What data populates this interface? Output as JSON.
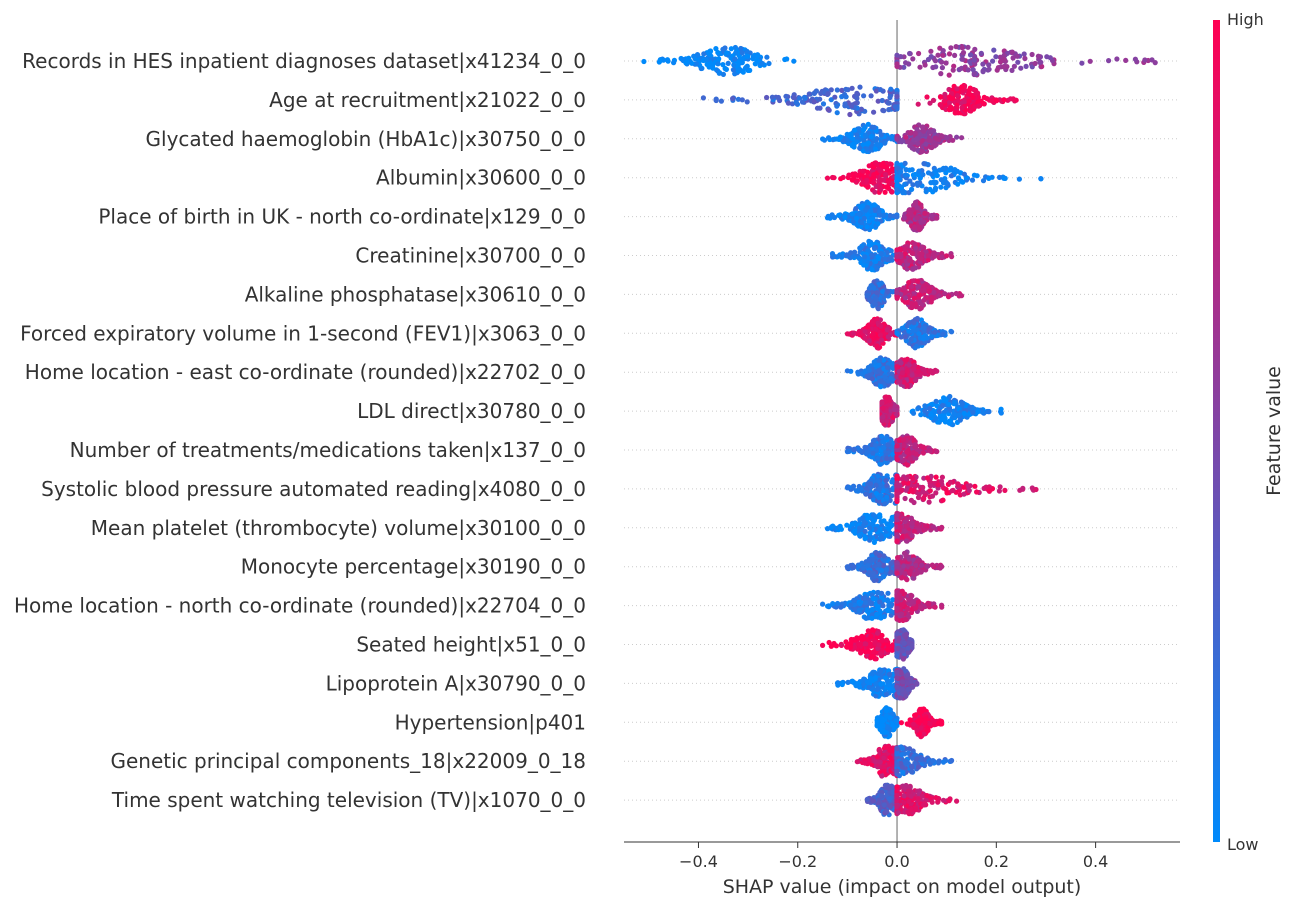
{
  "chart_data": {
    "type": "scatter",
    "subtype": "shap-beeswarm-summary",
    "title": "",
    "xlabel": "SHAP value (impact on model output)",
    "xlim": [
      -0.55,
      0.57
    ],
    "xticks": [
      -0.4,
      -0.2,
      0.0,
      0.2,
      0.4
    ],
    "xtick_labels": [
      "−0.4",
      "−0.2",
      "0.0",
      "0.2",
      "0.4"
    ],
    "colorbar": {
      "title": "Feature value",
      "high_label": "High",
      "low_label": "Low",
      "low_color": "#008afb",
      "high_color": "#ff0052"
    },
    "features": [
      {
        "name": "Records in HES inpatient diagnoses dataset|x41234_0_0",
        "min": -0.51,
        "max": 0.52,
        "neg_peak": -0.34,
        "pos_peak": 0.14,
        "neg_color": 0.0,
        "pos_color": 0.55
      },
      {
        "name": "Age at recruitment|x21022_0_0",
        "min": -0.39,
        "max": 0.24,
        "neg_peak": -0.08,
        "pos_peak": 0.13,
        "neg_color": 0.25,
        "pos_color": 0.95
      },
      {
        "name": "Glycated haemoglobin (HbA1c)|x30750_0_0",
        "min": -0.15,
        "max": 0.13,
        "neg_peak": -0.06,
        "pos_peak": 0.05,
        "neg_color": 0.05,
        "pos_color": 0.6
      },
      {
        "name": "Albumin|x30600_0_0",
        "min": -0.14,
        "max": 0.29,
        "neg_peak": -0.03,
        "pos_peak": 0.05,
        "neg_color": 0.95,
        "pos_color": 0.05
      },
      {
        "name": "Place of birth in UK - north co-ordinate|x129_0_0",
        "min": -0.14,
        "max": 0.08,
        "neg_peak": -0.06,
        "pos_peak": 0.04,
        "neg_color": 0.05,
        "pos_color": 0.7
      },
      {
        "name": "Creatinine|x30700_0_0",
        "min": -0.13,
        "max": 0.11,
        "neg_peak": -0.05,
        "pos_peak": 0.03,
        "neg_color": 0.1,
        "pos_color": 0.75
      },
      {
        "name": "Alkaline phosphatase|x30610_0_0",
        "min": -0.06,
        "max": 0.13,
        "neg_peak": -0.04,
        "pos_peak": 0.04,
        "neg_color": 0.2,
        "pos_color": 0.75
      },
      {
        "name": "Forced expiratory volume in 1-second (FEV1)|x3063_0_0",
        "min": -0.1,
        "max": 0.11,
        "neg_peak": -0.04,
        "pos_peak": 0.04,
        "neg_color": 0.9,
        "pos_color": 0.15
      },
      {
        "name": "Home location - east co-ordinate (rounded)|x22702_0_0",
        "min": -0.1,
        "max": 0.08,
        "neg_peak": -0.03,
        "pos_peak": 0.02,
        "neg_color": 0.15,
        "pos_color": 0.8
      },
      {
        "name": "LDL direct|x30780_0_0",
        "min": -0.03,
        "max": 0.21,
        "neg_peak": -0.02,
        "pos_peak": 0.1,
        "neg_color": 0.8,
        "pos_color": 0.05
      },
      {
        "name": "Number of treatments/medications taken|x137_0_0",
        "min": -0.1,
        "max": 0.08,
        "neg_peak": -0.03,
        "pos_peak": 0.02,
        "neg_color": 0.15,
        "pos_color": 0.75
      },
      {
        "name": "Systolic blood pressure automated reading|x4080_0_0",
        "min": -0.1,
        "max": 0.28,
        "neg_peak": -0.03,
        "pos_peak": 0.05,
        "neg_color": 0.15,
        "pos_color": 0.85
      },
      {
        "name": "Mean platelet (thrombocyte) volume|x30100_0_0",
        "min": -0.14,
        "max": 0.09,
        "neg_peak": -0.05,
        "pos_peak": 0.01,
        "neg_color": 0.05,
        "pos_color": 0.75
      },
      {
        "name": "Monocyte percentage|x30190_0_0",
        "min": -0.1,
        "max": 0.09,
        "neg_peak": -0.04,
        "pos_peak": 0.02,
        "neg_color": 0.2,
        "pos_color": 0.7
      },
      {
        "name": "Home location - north co-ordinate (rounded)|x22704_0_0",
        "min": -0.15,
        "max": 0.09,
        "neg_peak": -0.05,
        "pos_peak": 0.01,
        "neg_color": 0.1,
        "pos_color": 0.75
      },
      {
        "name": "Seated height|x51_0_0",
        "min": -0.15,
        "max": 0.03,
        "neg_peak": -0.05,
        "pos_peak": 0.01,
        "neg_color": 0.95,
        "pos_color": 0.4
      },
      {
        "name": "Lipoprotein A|x30790_0_0",
        "min": -0.12,
        "max": 0.04,
        "neg_peak": -0.03,
        "pos_peak": 0.01,
        "neg_color": 0.05,
        "pos_color": 0.45
      },
      {
        "name": "Hypertension|p401",
        "min": -0.04,
        "max": 0.09,
        "neg_peak": -0.02,
        "pos_peak": 0.05,
        "neg_color": 0.0,
        "pos_color": 1.0
      },
      {
        "name": "Genetic principal components_18|x22009_0_18",
        "min": -0.08,
        "max": 0.11,
        "neg_peak": -0.02,
        "pos_peak": 0.01,
        "neg_color": 0.85,
        "pos_color": 0.2
      },
      {
        "name": "Time spent watching television (TV)|x1070_0_0",
        "min": -0.06,
        "max": 0.12,
        "neg_peak": -0.02,
        "pos_peak": 0.02,
        "neg_color": 0.3,
        "pos_color": 0.85
      }
    ]
  }
}
